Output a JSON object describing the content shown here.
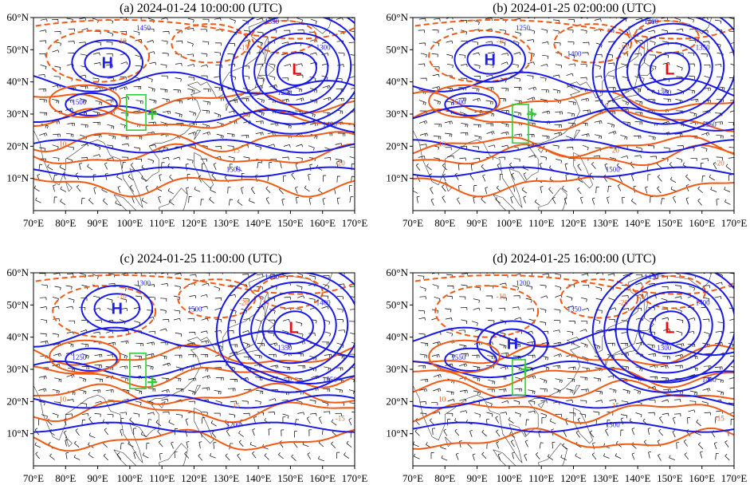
{
  "panels": [
    {
      "id": "a",
      "title": "(a) 2024-01-24 10:00:00 (UTC)",
      "high_label": "H",
      "low_label": "L",
      "high": {
        "lon": 93,
        "lat": 46
      },
      "low": {
        "lon": 152,
        "lat": 44
      },
      "box": {
        "lon0": 99,
        "lon1": 105,
        "lat0": 25,
        "lat1": 36
      },
      "cross": {
        "lon": 107,
        "lat": 30
      },
      "blue_labels": [
        "1350",
        "1300",
        "1250",
        "1450",
        "1500",
        "1500",
        "1400"
      ],
      "orange_labels": [
        "-10",
        "-15",
        "10",
        "15",
        "-20"
      ]
    },
    {
      "id": "b",
      "title": "(b) 2024-01-25 02:00:00 (UTC)",
      "high_label": "H",
      "low_label": "L",
      "high": {
        "lon": 94,
        "lat": 47
      },
      "low": {
        "lon": 150,
        "lat": 44
      },
      "box": {
        "lon0": 101,
        "lon1": 106,
        "lat0": 21,
        "lat1": 33
      },
      "cross": {
        "lon": 107,
        "lat": 30
      },
      "blue_labels": [
        "1400",
        "1350",
        "1300",
        "1250",
        "1500",
        "1500",
        "1350",
        "1400"
      ],
      "orange_labels": [
        "-10",
        "-15",
        "10",
        "20",
        "-20"
      ]
    },
    {
      "id": "c",
      "title": "(c) 2024-01-25 11:00:00 (UTC)",
      "high_label": "H",
      "low_label": "L",
      "high": {
        "lon": 96,
        "lat": 49
      },
      "low": {
        "lon": 151,
        "lat": 43
      },
      "box": {
        "lon0": 100,
        "lon1": 105,
        "lat0": 24,
        "lat1": 35
      },
      "cross": {
        "lon": 107,
        "lat": 26
      },
      "blue_labels": [
        "1450",
        "1400",
        "1350",
        "1300",
        "1250",
        "1200",
        "1550",
        "1500"
      ],
      "orange_labels": [
        "-10",
        "-20",
        "10",
        "15",
        "-15"
      ]
    },
    {
      "id": "d",
      "title": "(d) 2024-01-25 16:00:00 (UTC)",
      "high_label": "H",
      "low_label": "L",
      "high": {
        "lon": 101,
        "lat": 38
      },
      "low": {
        "lon": 150,
        "lat": 43
      },
      "box": {
        "lon0": 101,
        "lon1": 105,
        "lat0": 22,
        "lat1": 33
      },
      "cross": {
        "lon": 105,
        "lat": 30
      },
      "blue_labels": [
        "1450",
        "1400",
        "1300",
        "1200",
        "1550",
        "1500",
        "1400",
        "1350"
      ],
      "orange_labels": [
        "-10",
        "-20",
        "10",
        "15",
        "-15"
      ]
    }
  ],
  "axes": {
    "lon_ticks": [
      "70°E",
      "80°E",
      "90°E",
      "100°E",
      "110°E",
      "120°E",
      "130°E",
      "140°E",
      "150°E",
      "160°E",
      "170°E"
    ],
    "lat_ticks": [
      "60°N",
      "50°N",
      "40°N",
      "30°N",
      "20°N",
      "10°N"
    ],
    "lon_range": [
      70,
      170
    ],
    "lat_range": [
      0,
      60
    ]
  },
  "colors": {
    "geopotential_contour": "#1a1ae6",
    "temperature_contour": "#f05a14",
    "high_center": "#2020e0",
    "low_center": "#e01010",
    "region_box": "#33cc33",
    "wind_barbs": "#000000",
    "coastline": "#333333"
  }
}
